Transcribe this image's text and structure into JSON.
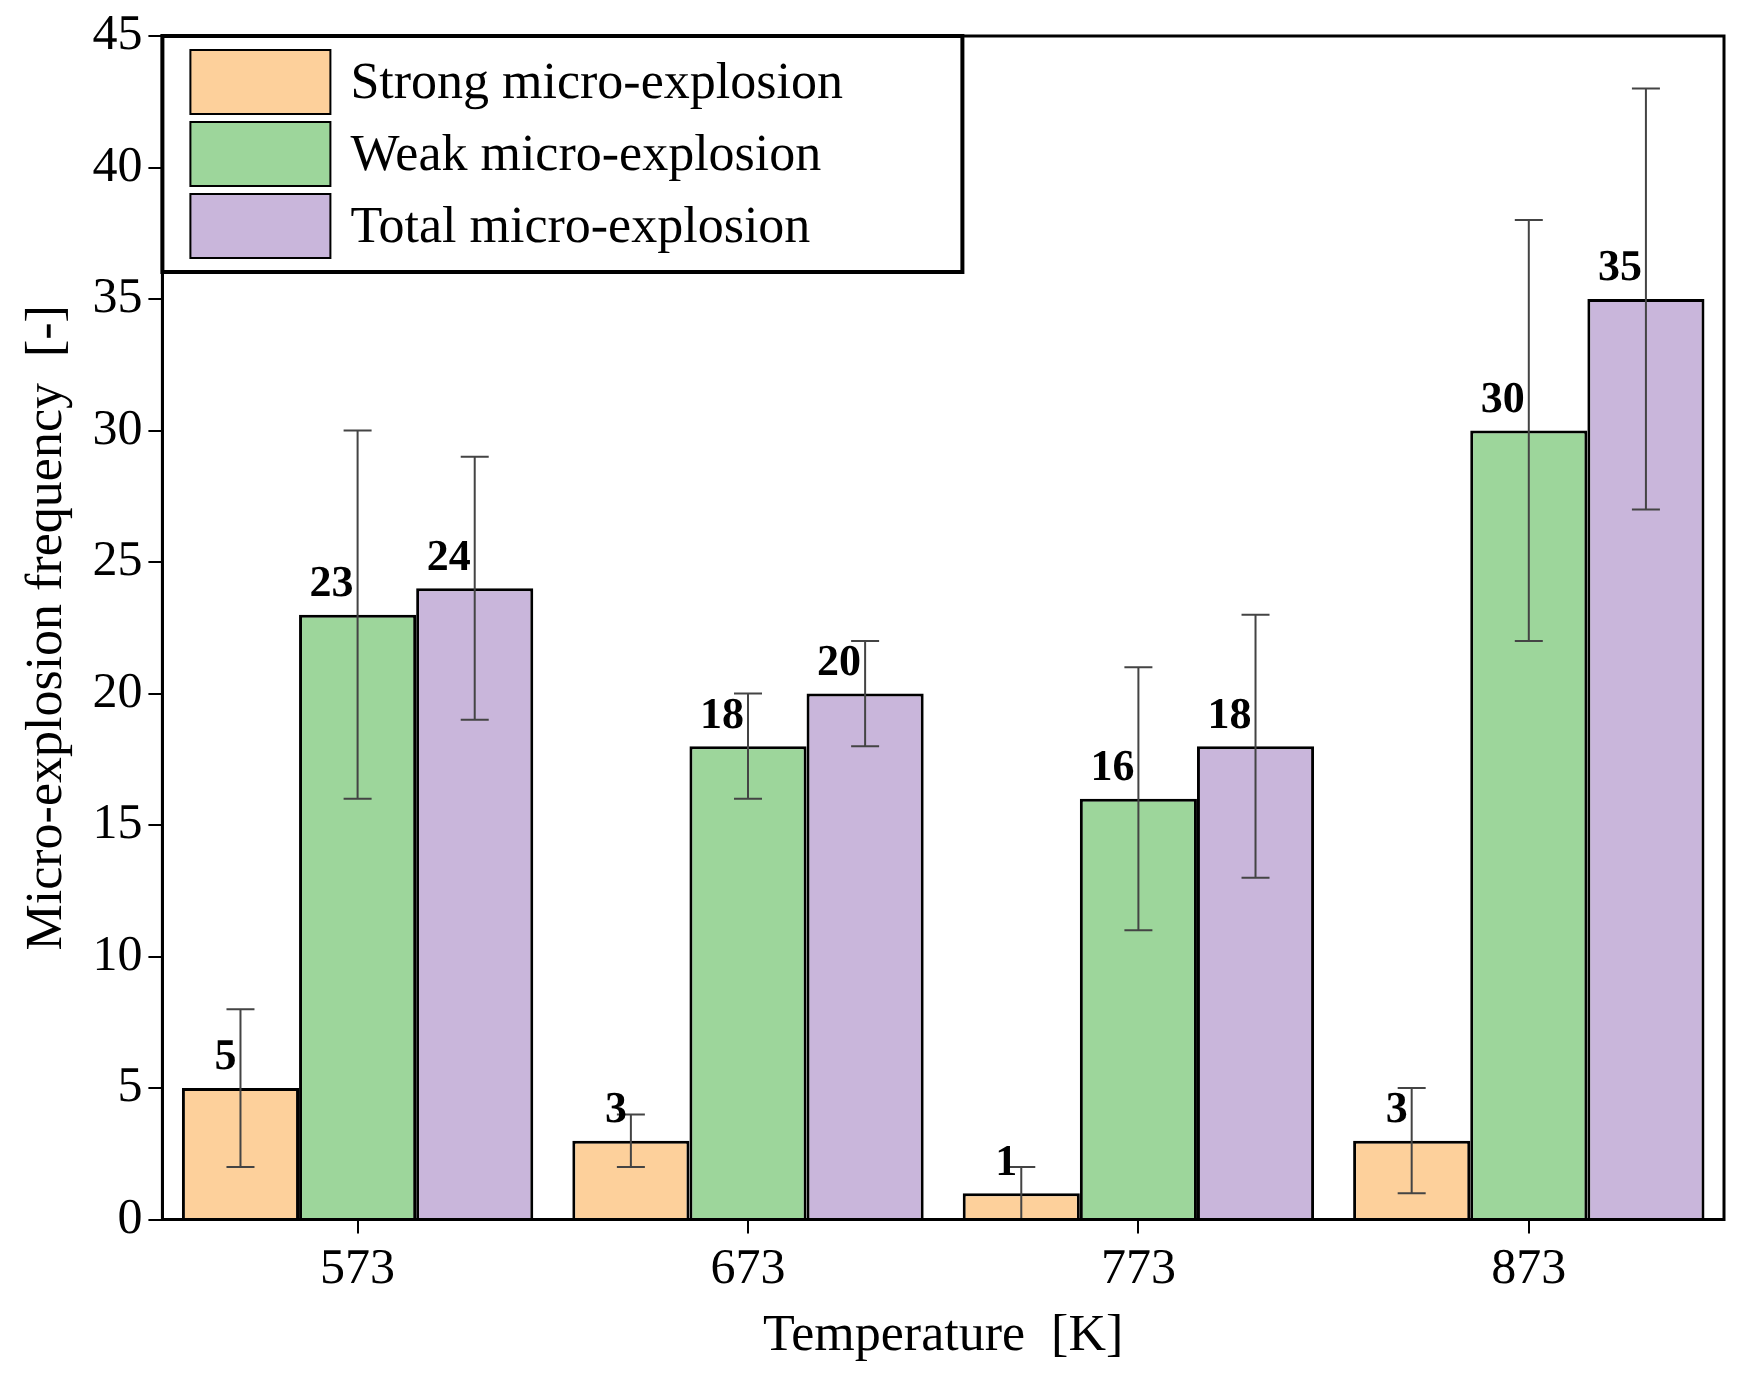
{
  "chart_data": {
    "type": "bar",
    "xlabel": "Temperature  [K]",
    "ylabel": "Micro-explosion frequency  [-]",
    "categories": [
      "573",
      "673",
      "773",
      "873"
    ],
    "series": [
      {
        "name": "Strong micro-explosion",
        "color": "#fdd09b",
        "values": [
          5,
          3,
          1,
          3
        ],
        "errors": [
          3,
          1,
          1,
          2
        ]
      },
      {
        "name": "Weak micro-explosion",
        "color": "#9dd69b",
        "values": [
          23,
          18,
          16,
          30
        ],
        "errors": [
          7,
          2,
          5,
          8
        ]
      },
      {
        "name": "Total micro-explosion",
        "color": "#c9b6db",
        "values": [
          24,
          20,
          18,
          35
        ],
        "errors": [
          5,
          2,
          5,
          8
        ]
      }
    ],
    "ylim": [
      0,
      45
    ],
    "yticks": [
      0,
      5,
      10,
      15,
      20,
      25,
      30,
      35,
      40,
      45
    ],
    "grid": false,
    "legend": "top left",
    "data_labels": true
  }
}
